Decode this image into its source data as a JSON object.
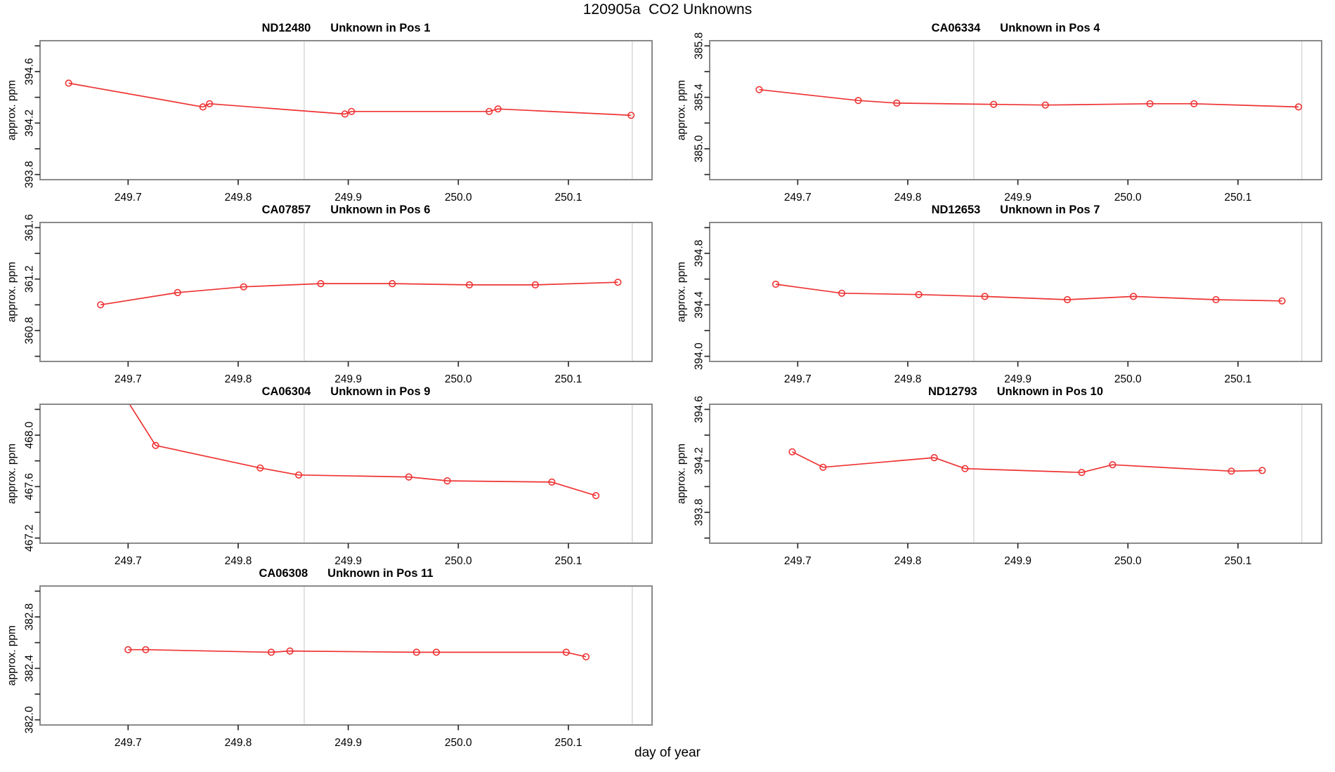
{
  "chart_data": {
    "type": "line",
    "title": "120905a  CO2 Unknowns",
    "xlabel": "day of year",
    "ylabel": "approx. ppm",
    "x_axis": {
      "lim": [
        249.62,
        250.176
      ],
      "ticks": [
        249.7,
        249.8,
        249.9,
        250.0,
        250.1
      ],
      "tick_labels": [
        "249.7",
        "249.8",
        "249.9",
        "250.0",
        "250.1"
      ]
    },
    "guides_x": [
      249.86,
      250.158
    ],
    "colors": {
      "line": "#ee3333",
      "guide": "#d9d9d9",
      "border": "#8a8a8a",
      "tick": "#2b2b2b",
      "text": "#000000",
      "background": "#ffffff"
    },
    "panels": [
      {
        "sample": "ND12480",
        "desc": "Unknown in Pos 1",
        "ylim": [
          393.76,
          394.84
        ],
        "yticks": [
          {
            "v": 393.8,
            "label": "393.8"
          },
          {
            "v": 394.0,
            "label": ""
          },
          {
            "v": 394.2,
            "label": "394.2"
          },
          {
            "v": 394.4,
            "label": ""
          },
          {
            "v": 394.6,
            "label": "394.6"
          },
          {
            "v": 394.8,
            "label": ""
          }
        ],
        "points": [
          [
            249.646,
            394.51
          ],
          [
            249.768,
            394.325
          ],
          [
            249.774,
            394.35
          ],
          [
            249.897,
            394.27
          ],
          [
            249.903,
            394.29
          ],
          [
            250.028,
            394.29
          ],
          [
            250.036,
            394.31
          ],
          [
            250.157,
            394.26
          ]
        ]
      },
      {
        "sample": "CA06334",
        "desc": "Unknown in Pos 4",
        "ylim": [
          384.76,
          385.84
        ],
        "yticks": [
          {
            "v": 384.8,
            "label": ""
          },
          {
            "v": 385.0,
            "label": "385.0"
          },
          {
            "v": 385.2,
            "label": ""
          },
          {
            "v": 385.4,
            "label": "385.4"
          },
          {
            "v": 385.6,
            "label": ""
          },
          {
            "v": 385.8,
            "label": "385.8"
          }
        ],
        "points": [
          [
            249.665,
            385.46
          ],
          [
            249.755,
            385.375
          ],
          [
            249.79,
            385.355
          ],
          [
            249.878,
            385.345
          ],
          [
            249.925,
            385.34
          ],
          [
            250.02,
            385.35
          ],
          [
            250.06,
            385.35
          ],
          [
            250.155,
            385.325
          ]
        ]
      },
      {
        "sample": "CA07857",
        "desc": "Unknown in Pos 6",
        "ylim": [
          360.56,
          361.64
        ],
        "yticks": [
          {
            "v": 360.6,
            "label": ""
          },
          {
            "v": 360.8,
            "label": "360.8"
          },
          {
            "v": 361.0,
            "label": ""
          },
          {
            "v": 361.2,
            "label": "361.2"
          },
          {
            "v": 361.4,
            "label": ""
          },
          {
            "v": 361.6,
            "label": "361.6"
          }
        ],
        "points": [
          [
            249.675,
            361.0
          ],
          [
            249.745,
            361.095
          ],
          [
            249.805,
            361.14
          ],
          [
            249.875,
            361.165
          ],
          [
            249.94,
            361.165
          ],
          [
            250.01,
            361.155
          ],
          [
            250.07,
            361.155
          ],
          [
            250.145,
            361.175
          ]
        ]
      },
      {
        "sample": "ND12653",
        "desc": "Unknown in Pos 7",
        "ylim": [
          393.96,
          395.04
        ],
        "yticks": [
          {
            "v": 394.0,
            "label": "394.0"
          },
          {
            "v": 394.2,
            "label": ""
          },
          {
            "v": 394.4,
            "label": "394.4"
          },
          {
            "v": 394.6,
            "label": ""
          },
          {
            "v": 394.8,
            "label": "394.8"
          },
          {
            "v": 395.0,
            "label": ""
          }
        ],
        "points": [
          [
            249.68,
            394.56
          ],
          [
            249.74,
            394.49
          ],
          [
            249.81,
            394.48
          ],
          [
            249.87,
            394.465
          ],
          [
            249.945,
            394.44
          ],
          [
            250.005,
            394.465
          ],
          [
            250.08,
            394.44
          ],
          [
            250.14,
            394.43
          ]
        ]
      },
      {
        "sample": "CA06304",
        "desc": "Unknown in Pos 9",
        "ylim": [
          467.16,
          468.24
        ],
        "yticks": [
          {
            "v": 467.2,
            "label": "467.2"
          },
          {
            "v": 467.4,
            "label": ""
          },
          {
            "v": 467.6,
            "label": "467.6"
          },
          {
            "v": 467.8,
            "label": ""
          },
          {
            "v": 468.0,
            "label": "468.0"
          },
          {
            "v": 468.2,
            "label": ""
          }
        ],
        "points": [
          [
            249.688,
            468.42
          ],
          [
            249.725,
            467.92
          ],
          [
            249.82,
            467.745
          ],
          [
            249.855,
            467.69
          ],
          [
            249.955,
            467.675
          ],
          [
            249.99,
            467.645
          ],
          [
            250.085,
            467.635
          ],
          [
            250.125,
            467.53
          ]
        ]
      },
      {
        "sample": "ND12793",
        "desc": "Unknown in Pos 10",
        "ylim": [
          393.56,
          394.64
        ],
        "yticks": [
          {
            "v": 393.6,
            "label": ""
          },
          {
            "v": 393.8,
            "label": "393.8"
          },
          {
            "v": 394.0,
            "label": ""
          },
          {
            "v": 394.2,
            "label": "394.2"
          },
          {
            "v": 394.4,
            "label": ""
          },
          {
            "v": 394.6,
            "label": "394.6"
          }
        ],
        "points": [
          [
            249.695,
            394.27
          ],
          [
            249.723,
            394.15
          ],
          [
            249.824,
            394.225
          ],
          [
            249.852,
            394.14
          ],
          [
            249.958,
            394.11
          ],
          [
            249.986,
            394.17
          ],
          [
            250.094,
            394.12
          ],
          [
            250.122,
            394.125
          ]
        ]
      },
      {
        "sample": "CA06308",
        "desc": "Unknown in Pos 11",
        "ylim": [
          381.96,
          383.04
        ],
        "yticks": [
          {
            "v": 382.0,
            "label": "382.0"
          },
          {
            "v": 382.2,
            "label": ""
          },
          {
            "v": 382.4,
            "label": "382.4"
          },
          {
            "v": 382.6,
            "label": ""
          },
          {
            "v": 382.8,
            "label": "382.8"
          },
          {
            "v": 383.0,
            "label": ""
          }
        ],
        "points": [
          [
            249.7,
            382.545
          ],
          [
            249.716,
            382.545
          ],
          [
            249.83,
            382.525
          ],
          [
            249.847,
            382.535
          ],
          [
            249.962,
            382.525
          ],
          [
            249.98,
            382.525
          ],
          [
            250.098,
            382.525
          ],
          [
            250.116,
            382.49
          ]
        ]
      }
    ]
  }
}
